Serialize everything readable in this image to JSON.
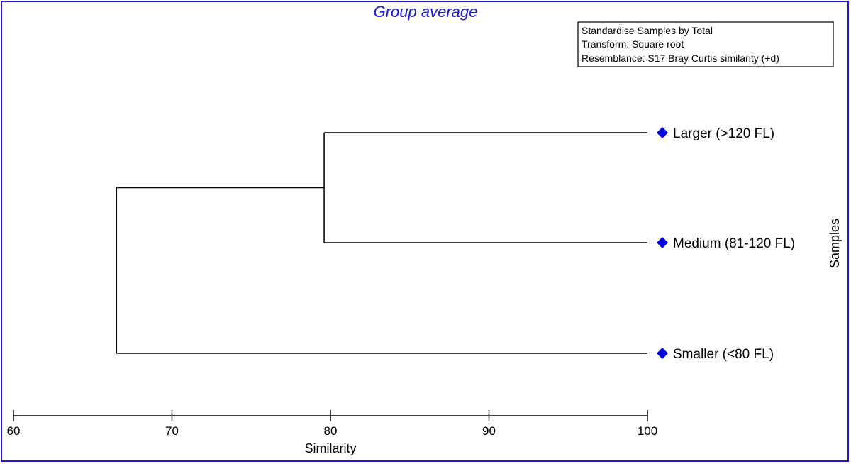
{
  "chart_data": {
    "type": "dendrogram",
    "title": "Group average",
    "info_box": [
      "Standardise Samples by Total",
      "Transform: Square root",
      "Resemblance: S17 Bray Curtis similarity (+d)"
    ],
    "xlabel": "Similarity",
    "ylabel": "Samples",
    "xlim": [
      60,
      100
    ],
    "ticks": [
      60,
      70,
      80,
      90,
      100
    ],
    "leaves": [
      "Larger (>120 FL)",
      "Medium (81-120 FL)",
      "Smaller (<80 FL)"
    ],
    "marker_color": "#0000e6",
    "merges": [
      {
        "members": [
          "Larger (>120 FL)",
          "Medium (81-120 FL)"
        ],
        "similarity": 79.6
      },
      {
        "members": [
          "Larger (>120 FL)",
          "Medium (81-120 FL)",
          "Smaller (<80 FL)"
        ],
        "similarity": 66.5
      }
    ]
  }
}
